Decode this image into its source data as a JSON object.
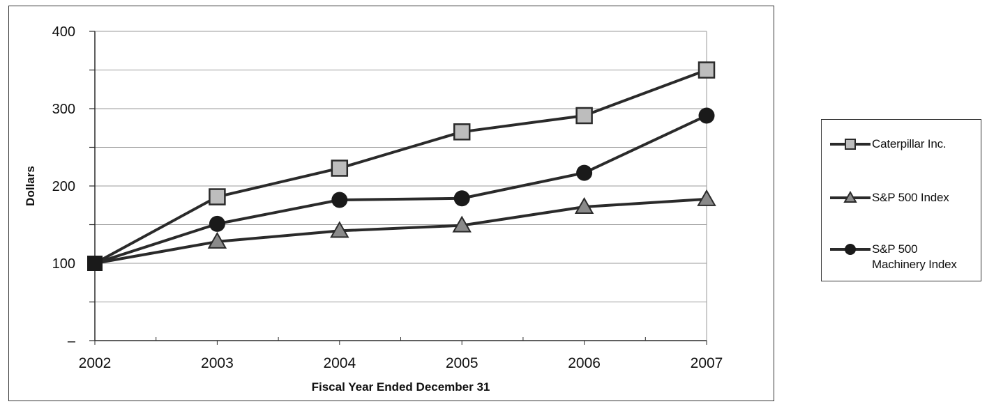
{
  "chart_data": {
    "type": "line",
    "title": "",
    "xlabel": "Fiscal Year Ended December 31",
    "ylabel": "Dollars",
    "x": [
      "2002",
      "2003",
      "2004",
      "2005",
      "2006",
      "2007"
    ],
    "y_ticks": [
      "–",
      "100",
      "200",
      "300",
      "400"
    ],
    "ylim": [
      0,
      400
    ],
    "grid": true,
    "legend_position": "right",
    "series": [
      {
        "name": "Caterpillar Inc.",
        "marker": "square",
        "color": "#bdbdbd",
        "values": [
          100,
          186,
          223,
          270,
          291,
          350
        ]
      },
      {
        "name": "S&P 500 Index",
        "marker": "triangle",
        "color": "#8a8a8a",
        "values": [
          100,
          128,
          142,
          149,
          173,
          183
        ]
      },
      {
        "name": "S&P 500\nMachinery Index",
        "marker": "circle",
        "color": "#1a1a1a",
        "values": [
          100,
          151,
          182,
          184,
          217,
          291
        ]
      }
    ]
  },
  "colors": {
    "line": "#2a2a2a",
    "grid": "#9a9a9a",
    "frame": "#333333",
    "first_point": "#1a1a1a"
  }
}
